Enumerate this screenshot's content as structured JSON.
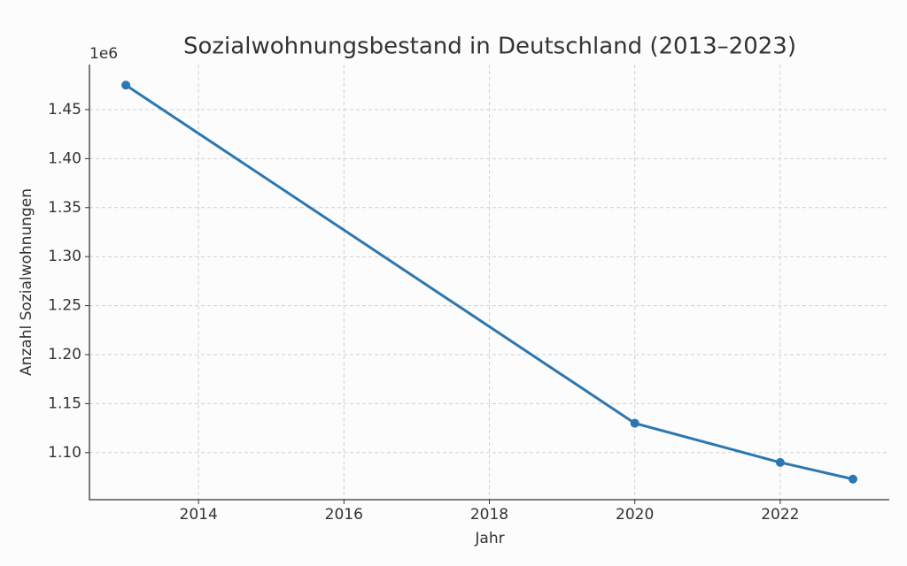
{
  "chart_data": {
    "type": "line",
    "title": "Sozialwohnungsbestand in Deutschland (2013–2023)",
    "x_label": "Jahr",
    "y_label": "Anzahl Sozialwohnungen",
    "y_offset_label": "1e6",
    "x": [
      2013,
      2020,
      2022,
      2023
    ],
    "series": [
      {
        "name": "Sozialwohnungen",
        "color": "#2c77b0",
        "values": [
          1475000,
          1130000,
          1090000,
          1073000
        ]
      }
    ],
    "xlim": [
      2012.5,
      2023.5
    ],
    "xticks": [
      2014,
      2016,
      2018,
      2020,
      2022
    ],
    "ylim": [
      1052000,
      1496000
    ],
    "yticks": [
      {
        "value": 1100000,
        "label": "1.10"
      },
      {
        "value": 1150000,
        "label": "1.15"
      },
      {
        "value": 1200000,
        "label": "1.20"
      },
      {
        "value": 1250000,
        "label": "1.25"
      },
      {
        "value": 1300000,
        "label": "1.30"
      },
      {
        "value": 1350000,
        "label": "1.35"
      },
      {
        "value": 1400000,
        "label": "1.40"
      },
      {
        "value": 1450000,
        "label": "1.45"
      }
    ],
    "grid": true
  }
}
